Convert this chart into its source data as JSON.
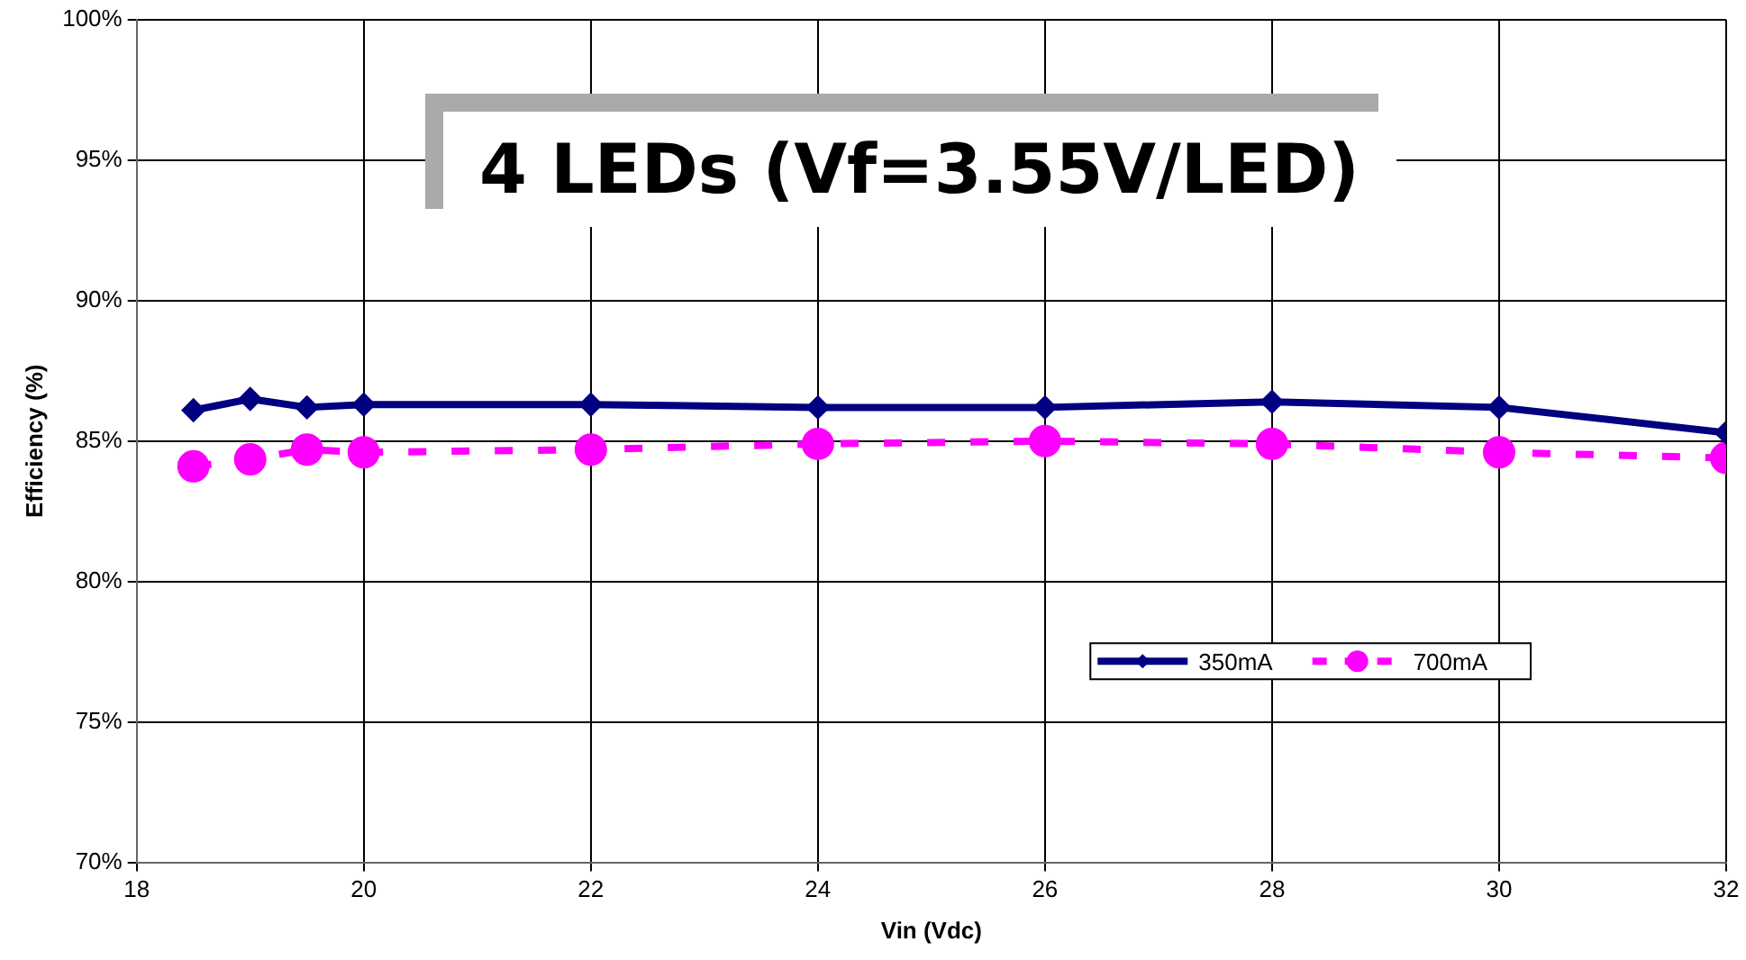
{
  "chart_data": {
    "type": "line",
    "title": "4 LEDs (Vf=3.55V/LED)",
    "xlabel": "Vin (Vdc)",
    "ylabel": "Efficiency (%)",
    "x": [
      18.5,
      19,
      19.5,
      20,
      22,
      24,
      26,
      28,
      30,
      32
    ],
    "series": [
      {
        "name": "350mA",
        "color": "#000080",
        "marker": "diamond",
        "line_style": "solid",
        "values": [
          86.1,
          86.5,
          86.2,
          86.3,
          86.3,
          86.2,
          86.2,
          86.4,
          86.2,
          85.3
        ]
      },
      {
        "name": "700mA",
        "color": "#ff00ff",
        "marker": "circle",
        "line_style": "dashed",
        "values": [
          84.1,
          84.35,
          84.7,
          84.6,
          84.7,
          84.9,
          85.0,
          84.9,
          84.6,
          84.4
        ]
      }
    ],
    "xlim": [
      18,
      32
    ],
    "xticks": [
      18,
      20,
      22,
      24,
      26,
      28,
      30,
      32
    ],
    "ylim": [
      70,
      100
    ],
    "yticks": [
      {
        "value": 70,
        "label": "70%"
      },
      {
        "value": 75,
        "label": "75%"
      },
      {
        "value": 80,
        "label": "80%"
      },
      {
        "value": 85,
        "label": "85%"
      },
      {
        "value": 90,
        "label": "90%"
      },
      {
        "value": 95,
        "label": "95%"
      },
      {
        "value": 100,
        "label": "100%"
      }
    ],
    "grid": true,
    "legend": "right"
  }
}
